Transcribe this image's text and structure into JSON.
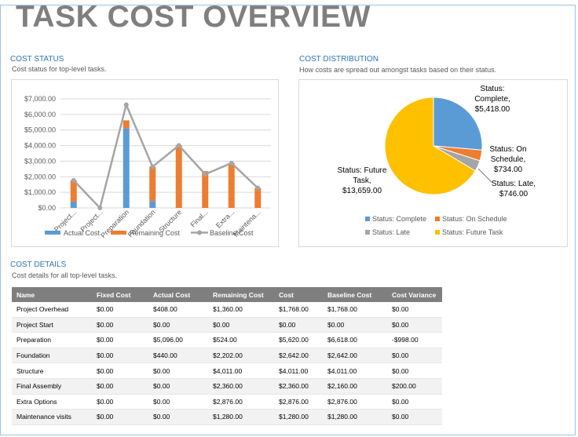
{
  "title": "TASK COST OVERVIEW",
  "cost_status": {
    "heading": "COST STATUS",
    "subtitle": "Cost status for top-level tasks."
  },
  "cost_distribution": {
    "heading": "COST DISTRIBUTION",
    "subtitle": "How costs are spread out amongst tasks based on their status."
  },
  "cost_details": {
    "heading": "COST DETAILS",
    "subtitle": "Cost details for all top-level tasks.",
    "columns": [
      "Name",
      "Fixed Cost",
      "Actual Cost",
      "Remaining Cost",
      "Cost",
      "Baseline Cost",
      "Cost Variance"
    ],
    "rows": [
      [
        "Project Overhead",
        "$0.00",
        "$408.00",
        "$1,360.00",
        "$1,768.00",
        "$1,768.00",
        "$0.00"
      ],
      [
        "Project Start",
        "$0.00",
        "$0.00",
        "$0.00",
        "$0.00",
        "$0.00",
        "$0.00"
      ],
      [
        "Preparation",
        "$0.00",
        "$5,096.00",
        "$524.00",
        "$5,620.00",
        "$6,618.00",
        "-$998.00"
      ],
      [
        "Foundation",
        "$0.00",
        "$440.00",
        "$2,202.00",
        "$2,642.00",
        "$2,642.00",
        "$0.00"
      ],
      [
        "Structure",
        "$0.00",
        "$0.00",
        "$4,011.00",
        "$4,011.00",
        "$4,011.00",
        "$0.00"
      ],
      [
        "Final Assembly",
        "$0.00",
        "$0.00",
        "$2,360.00",
        "$2,360.00",
        "$2,160.00",
        "$200.00"
      ],
      [
        "Extra Options",
        "$0.00",
        "$0.00",
        "$2,876.00",
        "$2,876.00",
        "$2,876.00",
        "$0.00"
      ],
      [
        "Maintenance visits",
        "$0.00",
        "$0.00",
        "$1,280.00",
        "$1,280.00",
        "$1,280.00",
        "$0.00"
      ]
    ]
  },
  "colors": {
    "actual": "#5b9bd5",
    "remaining": "#ed7d31",
    "baseline": "#a5a5a5",
    "late": "#a5a5a5",
    "future": "#ffc000"
  },
  "chart_data": [
    {
      "type": "bar",
      "stacked": true,
      "categories": [
        "Project...",
        "Project...",
        "Preparation",
        "Foundation",
        "Structure",
        "Final...",
        "Extra...",
        "Maintena..."
      ],
      "y_ticks": [
        "$0.00",
        "$1,000.00",
        "$2,000.00",
        "$3,000.00",
        "$4,000.00",
        "$5,000.00",
        "$6,000.00",
        "$7,000.00"
      ],
      "ylim": [
        0,
        7000
      ],
      "grid": true,
      "legend_position": "bottom",
      "series": [
        {
          "name": "Actual Cost",
          "type": "bar",
          "values": [
            408,
            0,
            5096,
            440,
            0,
            0,
            0,
            0
          ]
        },
        {
          "name": "Remaining Cost",
          "type": "bar",
          "values": [
            1360,
            0,
            524,
            2202,
            4011,
            2360,
            2876,
            1280
          ]
        },
        {
          "name": "Baseline Cost",
          "type": "line",
          "values": [
            1768,
            0,
            6618,
            2642,
            4011,
            2160,
            2876,
            1280
          ]
        }
      ]
    },
    {
      "type": "pie",
      "legend_position": "bottom",
      "slices": [
        {
          "name": "Status: Complete",
          "value": 5418,
          "label": [
            "Status:",
            "Complete,",
            "$5,418.00"
          ]
        },
        {
          "name": "Status: On Schedule",
          "value": 734,
          "label": [
            "Status: On",
            "Schedule,",
            "$734.00"
          ]
        },
        {
          "name": "Status: Late",
          "value": 746,
          "label": [
            "Status: Late,",
            "$746.00"
          ]
        },
        {
          "name": "Status: Future Task",
          "value": 13659,
          "label": [
            "Status: Future",
            "Task,",
            "$13,659.00"
          ]
        }
      ]
    }
  ]
}
